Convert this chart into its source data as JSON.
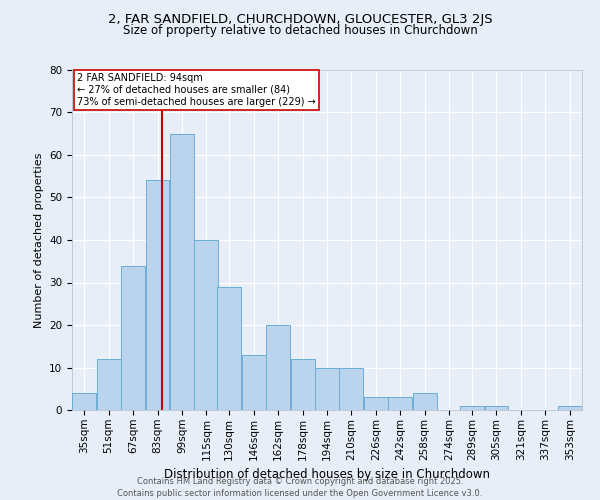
{
  "title_line1": "2, FAR SANDFIELD, CHURCHDOWN, GLOUCESTER, GL3 2JS",
  "title_line2": "Size of property relative to detached houses in Churchdown",
  "xlabel": "Distribution of detached houses by size in Churchdown",
  "ylabel": "Number of detached properties",
  "bar_color": "#bad4ed",
  "bar_edge_color": "#6aaed6",
  "background_color": "#e8eef8",
  "grid_color": "#ffffff",
  "annotation_box_color": "#ffffff",
  "annotation_box_edge": "#cc0000",
  "red_line_x": 94,
  "annotation_text": "2 FAR SANDFIELD: 94sqm\n← 27% of detached houses are smaller (84)\n73% of semi-detached houses are larger (229) →",
  "footer_text": "Contains HM Land Registry data © Crown copyright and database right 2025.\nContains public sector information licensed under the Open Government Licence v3.0.",
  "categories": [
    "35sqm",
    "51sqm",
    "67sqm",
    "83sqm",
    "99sqm",
    "115sqm",
    "130sqm",
    "146sqm",
    "162sqm",
    "178sqm",
    "194sqm",
    "210sqm",
    "226sqm",
    "242sqm",
    "258sqm",
    "274sqm",
    "289sqm",
    "305sqm",
    "321sqm",
    "337sqm",
    "353sqm"
  ],
  "bin_edges": [
    35,
    51,
    67,
    83,
    99,
    115,
    130,
    146,
    162,
    178,
    194,
    210,
    226,
    242,
    258,
    274,
    289,
    305,
    321,
    337,
    353
  ],
  "values": [
    4,
    12,
    34,
    54,
    65,
    40,
    29,
    13,
    20,
    12,
    10,
    10,
    3,
    3,
    4,
    0,
    1,
    1,
    0,
    0,
    1
  ],
  "ylim": [
    0,
    80
  ],
  "yticks": [
    0,
    10,
    20,
    30,
    40,
    50,
    60,
    70,
    80
  ],
  "title1_fontsize": 9.5,
  "title2_fontsize": 8.5,
  "annotation_fontsize": 7.0,
  "ylabel_fontsize": 8.0,
  "xlabel_fontsize": 8.5,
  "tick_fontsize": 7.5,
  "footer_fontsize": 6.0
}
